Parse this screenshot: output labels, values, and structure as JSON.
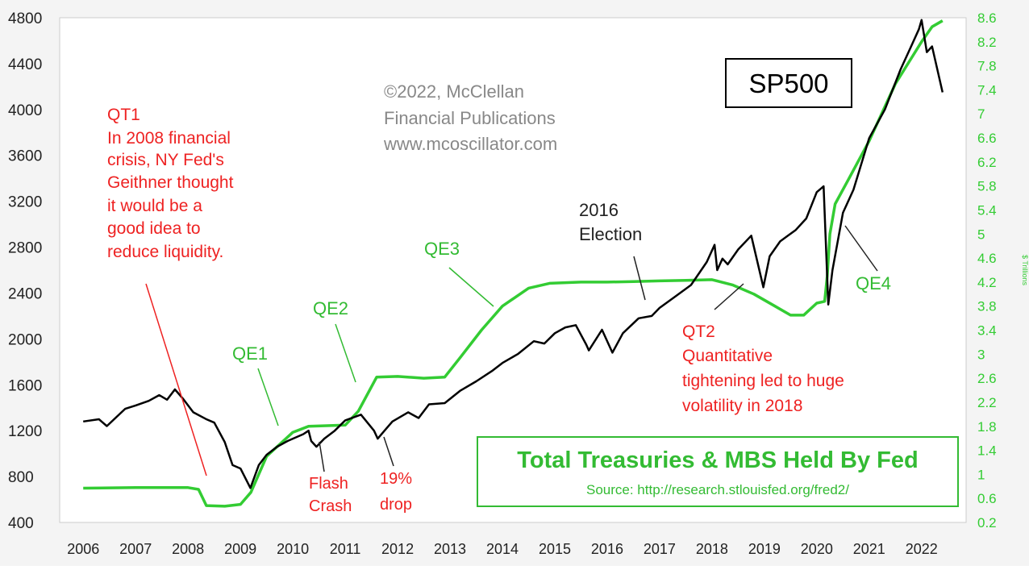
{
  "chart_data": {
    "type": "line",
    "title": "SP500",
    "copyright": [
      "©2022, McClellan",
      "Financial Publications",
      "www.mcoscillator.com"
    ],
    "colors": {
      "sp500": "#000000",
      "fed": "#33cc33",
      "red_note": "#ee2222",
      "axis_text": "#222222",
      "right_axis_text": "#33cc33",
      "plot_bg": "#ffffff"
    },
    "x_ticks": [
      "2006",
      "2007",
      "2008",
      "2009",
      "2010",
      "2011",
      "2012",
      "2013",
      "2014",
      "2015",
      "2016",
      "2017",
      "2018",
      "2019",
      "2020",
      "2021",
      "2022"
    ],
    "x_range": [
      2005.55,
      2022.85
    ],
    "left_axis": {
      "ticks": [
        "400",
        "800",
        "1200",
        "1600",
        "2000",
        "2400",
        "2800",
        "3200",
        "3600",
        "4000",
        "4400",
        "4800"
      ],
      "range": [
        400,
        4800
      ]
    },
    "right_axis": {
      "label": "$ Trillions",
      "ticks": [
        "0.2",
        "0.6",
        "1",
        "1.4",
        "1.8",
        "2.2",
        "2.6",
        "3",
        "3.4",
        "3.8",
        "4.2",
        "4.6",
        "5",
        "5.4",
        "5.8",
        "6.2",
        "6.6",
        "7",
        "7.4",
        "7.8",
        "8.2",
        "8.6"
      ],
      "range": [
        0.2,
        8.6
      ]
    },
    "series": [
      {
        "name": "SP500",
        "x": [
          2006.0,
          2006.3,
          2006.45,
          2006.8,
          2007.0,
          2007.25,
          2007.45,
          2007.6,
          2007.75,
          2007.9,
          2008.1,
          2008.35,
          2008.5,
          2008.7,
          2008.85,
          2009.0,
          2009.19,
          2009.35,
          2009.5,
          2009.7,
          2009.9,
          2010.2,
          2010.3,
          2010.35,
          2010.45,
          2010.6,
          2010.8,
          2011.0,
          2011.3,
          2011.55,
          2011.62,
          2011.75,
          2011.9,
          2012.2,
          2012.4,
          2012.6,
          2012.9,
          2013.2,
          2013.5,
          2013.8,
          2014.0,
          2014.3,
          2014.6,
          2014.8,
          2015.0,
          2015.2,
          2015.4,
          2015.6,
          2015.65,
          2015.9,
          2016.1,
          2016.3,
          2016.6,
          2016.85,
          2017.0,
          2017.3,
          2017.6,
          2017.9,
          2018.05,
          2018.1,
          2018.2,
          2018.3,
          2018.5,
          2018.75,
          2018.98,
          2019.1,
          2019.3,
          2019.45,
          2019.6,
          2019.8,
          2020.0,
          2020.13,
          2020.22,
          2020.3,
          2020.5,
          2020.7,
          2020.8,
          2021.0,
          2021.3,
          2021.6,
          2021.8,
          2021.95,
          2022.0,
          2022.1,
          2022.2,
          2022.3,
          2022.4
        ],
        "values": [
          1280,
          1300,
          1240,
          1390,
          1420,
          1460,
          1510,
          1470,
          1560,
          1480,
          1360,
          1300,
          1270,
          1100,
          900,
          870,
          700,
          900,
          990,
          1060,
          1110,
          1170,
          1200,
          1110,
          1060,
          1130,
          1200,
          1290,
          1340,
          1200,
          1130,
          1200,
          1280,
          1360,
          1310,
          1430,
          1440,
          1550,
          1630,
          1720,
          1790,
          1870,
          1980,
          1960,
          2050,
          2100,
          2120,
          1950,
          1900,
          2080,
          1880,
          2050,
          2180,
          2200,
          2270,
          2370,
          2470,
          2670,
          2820,
          2600,
          2700,
          2650,
          2780,
          2900,
          2450,
          2720,
          2850,
          2900,
          2950,
          3050,
          3280,
          3330,
          2300,
          2600,
          3100,
          3300,
          3450,
          3750,
          4000,
          4350,
          4550,
          4700,
          4780,
          4500,
          4550,
          4350,
          4150
        ]
      },
      {
        "name": "Total Treasuries & MBS Held By Fed",
        "x": [
          2006.0,
          2007.0,
          2008.0,
          2008.2,
          2008.35,
          2008.7,
          2009.0,
          2009.2,
          2009.5,
          2010.0,
          2010.3,
          2011.0,
          2011.25,
          2011.6,
          2012.0,
          2012.5,
          2012.9,
          2013.2,
          2013.6,
          2014.0,
          2014.5,
          2014.9,
          2015.5,
          2016.0,
          2016.5,
          2017.0,
          2017.5,
          2018.0,
          2018.4,
          2018.8,
          2019.2,
          2019.5,
          2019.75,
          2020.0,
          2020.15,
          2020.2,
          2020.25,
          2020.35,
          2020.6,
          2021.0,
          2021.5,
          2022.0,
          2022.2,
          2022.4
        ],
        "values": [
          0.77,
          0.78,
          0.78,
          0.75,
          0.48,
          0.47,
          0.5,
          0.7,
          1.3,
          1.7,
          1.8,
          1.82,
          2.05,
          2.62,
          2.63,
          2.6,
          2.62,
          2.95,
          3.4,
          3.8,
          4.1,
          4.18,
          4.2,
          4.2,
          4.21,
          4.22,
          4.23,
          4.24,
          4.15,
          4.0,
          3.8,
          3.65,
          3.65,
          3.85,
          3.88,
          4.3,
          5.0,
          5.5,
          5.9,
          6.55,
          7.5,
          8.2,
          8.45,
          8.55
        ]
      }
    ],
    "annotations": {
      "qt1": [
        "QT1",
        "In 2008 financial",
        "crisis, NY Fed's",
        "Geithner thought",
        "it would be a",
        "good idea to",
        "reduce liquidity."
      ],
      "qe1": "QE1",
      "qe2": "QE2",
      "qe3": "QE3",
      "qe4": "QE4",
      "election": [
        "2016",
        "Election"
      ],
      "flash_crash": [
        "Flash",
        "Crash"
      ],
      "drop": [
        "19%",
        "drop"
      ],
      "qt2": [
        "QT2",
        "Quantitative",
        "tightening led to huge",
        "volatility in 2018"
      ]
    },
    "legend_box": {
      "title": "Total Treasuries & MBS Held By Fed",
      "source": "Source: http://research.stlouisfed.org/fred2/"
    }
  }
}
